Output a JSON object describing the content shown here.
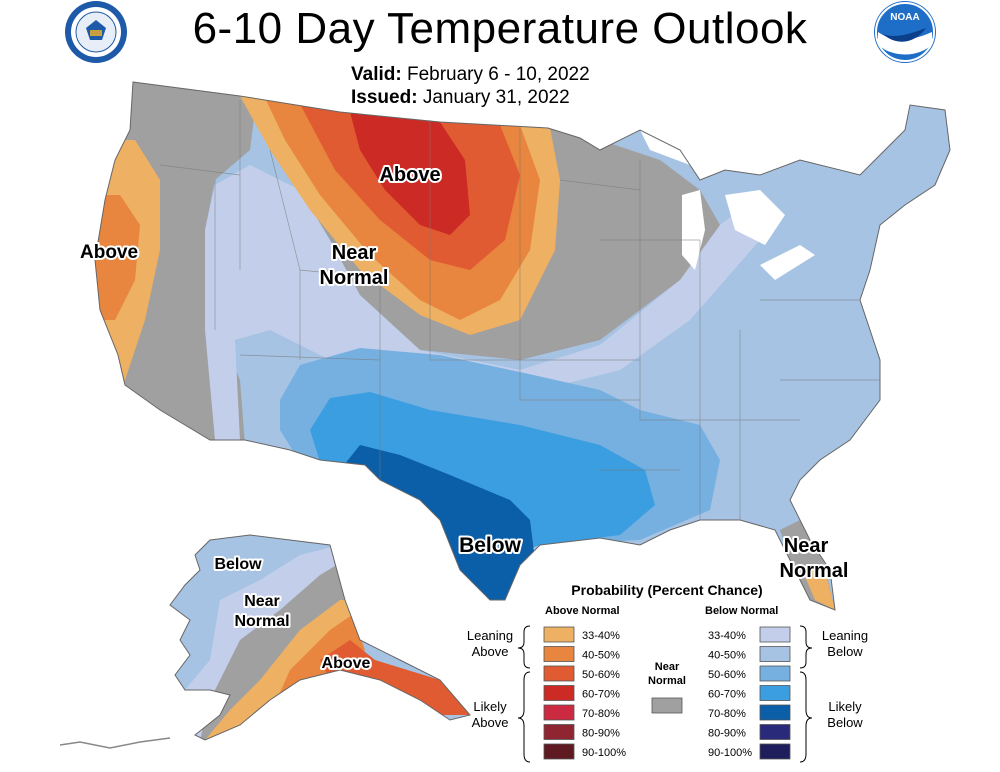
{
  "header": {
    "title": "6-10 Day Temperature Outlook",
    "valid_label": "Valid:",
    "valid_value": "February 6 - 10, 2022",
    "issued_label": "Issued:",
    "issued_value": "January 31, 2022"
  },
  "logos": {
    "left": "Department of Commerce seal",
    "left_text": "DEPARTMENT OF COMMERCE · UNITED STATES OF AMERICA",
    "right": "NOAA logo",
    "right_text": "NOAA"
  },
  "map_labels": {
    "above_west": "Above",
    "near_normal_west_line1": "Near",
    "near_normal_west_line2": "Normal",
    "above_north": "Above",
    "below_south": "Below",
    "near_normal_fl_line1": "Near",
    "near_normal_fl_line2": "Normal",
    "ak_below": "Below",
    "ak_near_line1": "Near",
    "ak_near_line2": "Normal",
    "ak_above": "Above"
  },
  "legend": {
    "title": "Probability (Percent Chance)",
    "above_header": "Above Normal",
    "below_header": "Below Normal",
    "leaning_above_line1": "Leaning",
    "leaning_above_line2": "Above",
    "likely_above_line1": "Likely",
    "likely_above_line2": "Above",
    "leaning_below_line1": "Leaning",
    "leaning_below_line2": "Below",
    "likely_below_line1": "Likely",
    "likely_below_line2": "Below",
    "near_normal_line1": "Near",
    "near_normal_line2": "Normal",
    "near_normal_color": "#a0a0a0",
    "above_items": [
      {
        "label": "33-40%",
        "color": "#eeb062"
      },
      {
        "label": "40-50%",
        "color": "#e8853e"
      },
      {
        "label": "50-60%",
        "color": "#e05b32"
      },
      {
        "label": "60-70%",
        "color": "#cc2a24"
      },
      {
        "label": "70-80%",
        "color": "#cc2a40"
      },
      {
        "label": "80-90%",
        "color": "#8f2530"
      },
      {
        "label": "90-100%",
        "color": "#5e1a20"
      }
    ],
    "below_items": [
      {
        "label": "33-40%",
        "color": "#c3cfea"
      },
      {
        "label": "40-50%",
        "color": "#a6c3e4"
      },
      {
        "label": "50-60%",
        "color": "#76b0e0"
      },
      {
        "label": "60-70%",
        "color": "#3a9ee0"
      },
      {
        "label": "70-80%",
        "color": "#0b5ea8"
      },
      {
        "label": "80-90%",
        "color": "#2a2a7a"
      },
      {
        "label": "90-100%",
        "color": "#1e1e5c"
      }
    ]
  }
}
